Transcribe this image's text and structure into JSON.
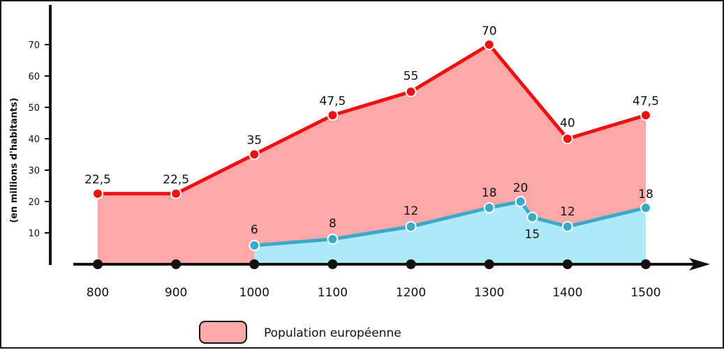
{
  "chart_data": {
    "type": "area",
    "ylabel": "(en millions d'habitants)",
    "xlabel": "",
    "title": "",
    "x": [
      800,
      900,
      1000,
      1100,
      1200,
      1300,
      1400,
      1500
    ],
    "x_ticks": [
      "800",
      "900",
      "1000",
      "1100",
      "1200",
      "1300",
      "1400",
      "1500"
    ],
    "y_ticks": [
      "10",
      "20",
      "30",
      "40",
      "50",
      "60",
      "70"
    ],
    "ylim": [
      0,
      78
    ],
    "series": [
      {
        "name": "Population européenne",
        "color": "#ee1111",
        "fill": "#fda8a8",
        "points": [
          {
            "x": 800,
            "y": 22.5,
            "label": "22,5"
          },
          {
            "x": 900,
            "y": 22.5,
            "label": "22,5"
          },
          {
            "x": 1000,
            "y": 35,
            "label": "35"
          },
          {
            "x": 1100,
            "y": 47.5,
            "label": "47,5"
          },
          {
            "x": 1200,
            "y": 55,
            "label": "55"
          },
          {
            "x": 1300,
            "y": 70,
            "label": "70"
          },
          {
            "x": 1400,
            "y": 40,
            "label": "40"
          },
          {
            "x": 1500,
            "y": 47.5,
            "label": "47,5"
          }
        ]
      },
      {
        "color": "#3aa9c9",
        "fill": "#aee9f7",
        "points": [
          {
            "x": 1000,
            "y": 6,
            "label": "6"
          },
          {
            "x": 1100,
            "y": 8,
            "label": "8"
          },
          {
            "x": 1200,
            "y": 12,
            "label": "12"
          },
          {
            "x": 1300,
            "y": 18,
            "label": "18"
          },
          {
            "x": 1340,
            "y": 20,
            "label": "20"
          },
          {
            "x": 1355,
            "y": 15,
            "label": "15"
          },
          {
            "x": 1400,
            "y": 12,
            "label": "12"
          },
          {
            "x": 1500,
            "y": 18,
            "label": "18"
          }
        ]
      }
    ],
    "axis_markers": [
      800,
      900,
      1000,
      1100,
      1200,
      1300,
      1400,
      1500
    ],
    "legend": {
      "position": "bottom-center",
      "entries": [
        {
          "label": "Population européenne",
          "color": "#fda8a8"
        }
      ]
    },
    "grid": false
  }
}
